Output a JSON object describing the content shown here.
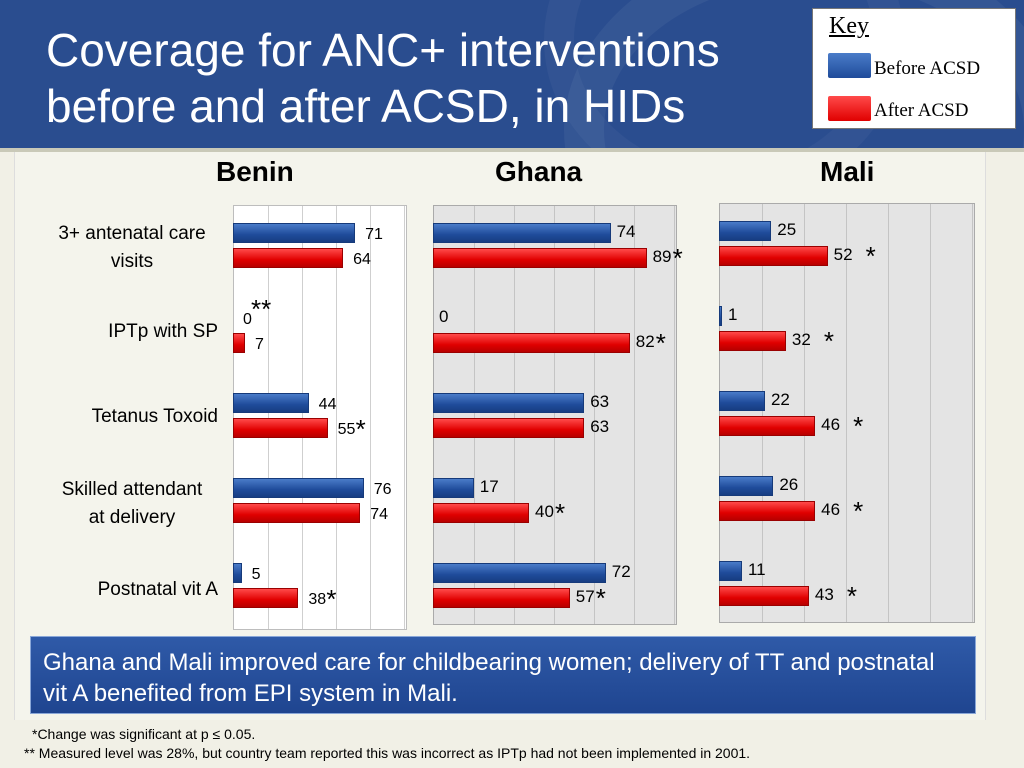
{
  "title_lines": [
    "Coverage for ANC+ interventions",
    "before and after ACSD, in HIDs"
  ],
  "key": {
    "title": "Key",
    "before_label": "Before ACSD",
    "after_label": "After ACSD",
    "before_color": "#1f4b9a",
    "after_color": "#e00000"
  },
  "note": "Ghana and Mali improved care for childbearing women; delivery of TT and postnatal vit A benefited from EPI system in Mali.",
  "footnotes": [
    "*Change was significant at p ≤ 0.05.",
    "** Measured level was 28%, but country team reported this  was incorrect as IPTp had not been implemented in 2001."
  ],
  "chart_data": [
    {
      "type": "bar",
      "country": "Benin",
      "categories": [
        "3+ antenatal care visits",
        "IPTp with SP",
        "Tetanus Toxoid",
        "Skilled attendant at delivery",
        "Postnatal vit A"
      ],
      "series": [
        {
          "name": "Before ACSD",
          "values": [
            71,
            0,
            44,
            76,
            5
          ]
        },
        {
          "name": "After ACSD",
          "values": [
            64,
            7,
            55,
            74,
            38
          ]
        }
      ],
      "markers": [
        "",
        "**",
        "*",
        "",
        "*"
      ],
      "xlim": [
        0,
        100
      ]
    },
    {
      "type": "bar",
      "country": "Ghana",
      "categories": [
        "3+ antenatal care visits",
        "IPTp with SP",
        "Tetanus Toxoid",
        "Skilled attendant at delivery",
        "Postnatal vit A"
      ],
      "series": [
        {
          "name": "Before ACSD",
          "values": [
            74,
            0,
            63,
            17,
            72
          ]
        },
        {
          "name": "After ACSD",
          "values": [
            89,
            82,
            63,
            40,
            57
          ]
        }
      ],
      "markers": [
        "*",
        "*",
        "",
        "*",
        "*"
      ],
      "xlim": [
        0,
        100
      ]
    },
    {
      "type": "bar",
      "country": "Mali",
      "categories": [
        "3+ antenatal care visits",
        "IPTp with SP",
        "Tetanus Toxoid",
        "Skilled attendant at delivery",
        "Postnatal vit A"
      ],
      "series": [
        {
          "name": "Before ACSD",
          "values": [
            25,
            1,
            22,
            26,
            11
          ]
        },
        {
          "name": "After ACSD",
          "values": [
            52,
            32,
            46,
            46,
            43
          ]
        }
      ],
      "markers": [
        "*",
        "*",
        "*",
        "*",
        "*"
      ],
      "xlim": [
        0,
        100
      ]
    }
  ],
  "category_lines": [
    [
      "3+ antenatal care",
      "visits"
    ],
    [
      "IPTp with SP"
    ],
    [
      "Tetanus Toxoid"
    ],
    [
      "Skilled attendant",
      "at delivery"
    ],
    [
      "Postnatal vit A"
    ]
  ]
}
